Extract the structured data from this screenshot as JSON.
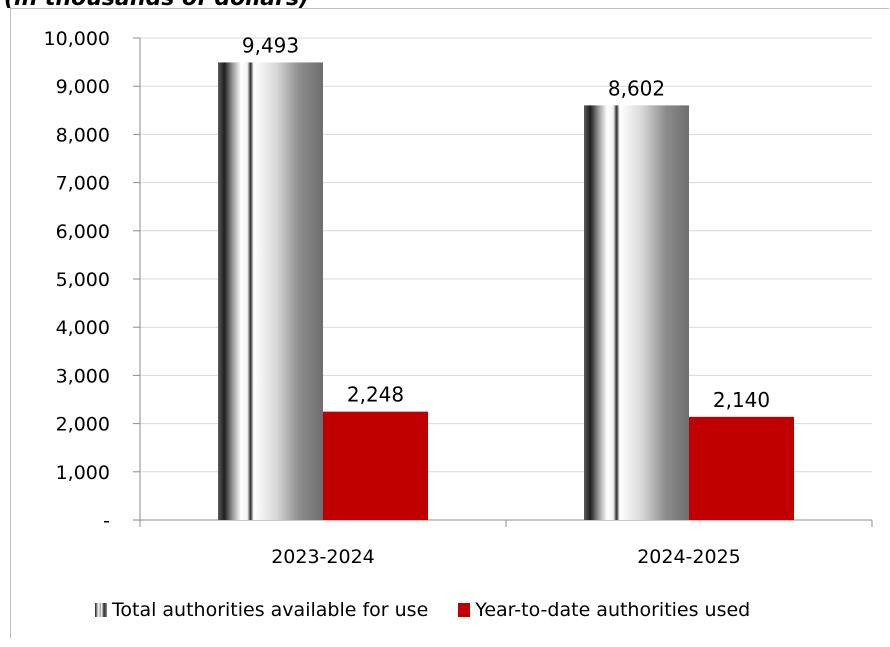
{
  "title": "(in thousands of dollars)",
  "chart_data": {
    "type": "bar",
    "categories": [
      "2023-2024",
      "2024-2025"
    ],
    "series": [
      {
        "name": "Total authorities available for use",
        "values": [
          9493,
          8602
        ],
        "labels": [
          "9,493",
          "8,602"
        ],
        "color": "#808080"
      },
      {
        "name": "Year-to-date authorities used",
        "values": [
          2248,
          2140
        ],
        "labels": [
          "2,248",
          "2,140"
        ],
        "color": "#c00000"
      }
    ],
    "ylim": [
      0,
      10000
    ],
    "yticks": [
      0,
      1000,
      2000,
      3000,
      4000,
      5000,
      6000,
      7000,
      8000,
      9000,
      10000
    ],
    "ytick_labels": [
      "-",
      "1,000",
      "2,000",
      "3,000",
      "4,000",
      "5,000",
      "6,000",
      "7,000",
      "8,000",
      "9,000",
      "10,000"
    ],
    "grid": true,
    "legend_position": "bottom"
  }
}
